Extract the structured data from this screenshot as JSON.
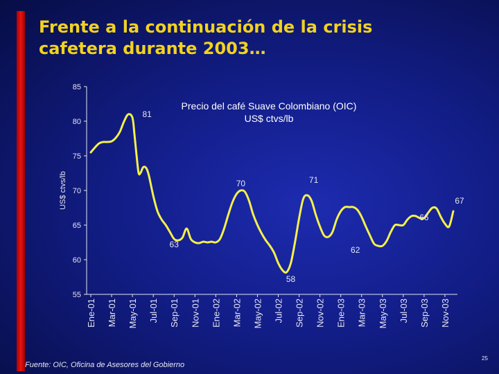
{
  "title": {
    "line1": "Frente a la continuación de la crisis",
    "line2": "cafetera durante 2003…"
  },
  "footer": {
    "source": "Fuente: OIC, Oficina de Asesores del Gobierno",
    "page_number": "25"
  },
  "colors": {
    "title": "#f2d21f",
    "line": "#f5f04a",
    "accent": "#d40d0d"
  },
  "chart_data": {
    "type": "line",
    "title": "Precio del café Suave Colombiano (OIC)",
    "subtitle": "US$ ctvs/lb",
    "ylabel": "US$ ctvs/lb",
    "xlabel": "",
    "ylim": [
      55,
      85
    ],
    "yticks": [
      55,
      60,
      65,
      70,
      75,
      80,
      85
    ],
    "xticks": [
      {
        "label": "Ene-01",
        "pos": 0
      },
      {
        "label": "Mar-01",
        "pos": 1
      },
      {
        "label": "May-01",
        "pos": 2
      },
      {
        "label": "Jul-01",
        "pos": 3
      },
      {
        "label": "Sep-01",
        "pos": 4
      },
      {
        "label": "Nov-01",
        "pos": 5
      },
      {
        "label": "Ene-02",
        "pos": 6
      },
      {
        "label": "Mar-02",
        "pos": 7
      },
      {
        "label": "May-02",
        "pos": 8
      },
      {
        "label": "Jul-02",
        "pos": 9
      },
      {
        "label": "Sep-02",
        "pos": 10
      },
      {
        "label": "Nov-02",
        "pos": 11
      },
      {
        "label": "Ene-03",
        "pos": 12
      },
      {
        "label": "Mar-03",
        "pos": 13
      },
      {
        "label": "May-03",
        "pos": 14
      },
      {
        "label": "Jul-03",
        "pos": 15
      },
      {
        "label": "Sep-03",
        "pos": 16
      },
      {
        "label": "Nov-03",
        "pos": 17
      }
    ],
    "series": [
      {
        "name": "Precio del café Suave Colombiano (OIC)",
        "x": [
          0,
          0.2,
          0.4,
          0.6,
          0.8,
          1.0,
          1.2,
          1.4,
          1.6,
          1.8,
          2.0,
          2.1,
          2.2,
          2.3,
          2.4,
          2.5,
          2.6,
          2.7,
          2.8,
          3.0,
          3.2,
          3.4,
          3.6,
          3.8,
          4.0,
          4.2,
          4.4,
          4.6,
          4.8,
          5.0,
          5.2,
          5.4,
          5.6,
          5.8,
          6.0,
          6.2,
          6.4,
          6.6,
          6.8,
          7.0,
          7.2,
          7.4,
          7.6,
          7.8,
          8.0,
          8.2,
          8.4,
          8.6,
          8.8,
          9.0,
          9.2,
          9.4,
          9.6,
          9.8,
          10.0,
          10.2,
          10.4,
          10.6,
          10.8,
          11.0,
          11.2,
          11.4,
          11.6,
          11.8,
          12.0,
          12.2,
          12.4,
          12.6,
          12.8,
          13.0,
          13.2,
          13.4,
          13.6,
          13.8,
          14.0,
          14.2,
          14.4,
          14.6,
          14.8,
          15.0,
          15.2,
          15.4,
          15.6,
          15.8,
          16.0,
          16.2,
          16.4,
          16.6,
          16.8,
          17.0,
          17.2,
          17.4
        ],
        "values": [
          75.5,
          76.2,
          76.8,
          77.0,
          77.0,
          77.1,
          77.6,
          78.5,
          80.0,
          81.0,
          80.5,
          78.0,
          75.0,
          72.5,
          72.6,
          73.3,
          73.4,
          73.0,
          72.0,
          69.2,
          67.0,
          65.8,
          65.0,
          64.0,
          63.0,
          62.8,
          63.2,
          64.5,
          63.0,
          62.5,
          62.4,
          62.6,
          62.5,
          62.6,
          62.5,
          63.0,
          64.5,
          66.5,
          68.3,
          69.5,
          70.0,
          69.8,
          68.5,
          66.5,
          65.0,
          63.8,
          62.8,
          62.0,
          61.0,
          59.5,
          58.5,
          58.2,
          59.5,
          62.5,
          66.0,
          68.8,
          69.3,
          68.5,
          66.5,
          64.8,
          63.5,
          63.3,
          64.0,
          65.8,
          67.0,
          67.6,
          67.6,
          67.6,
          67.2,
          66.2,
          64.8,
          63.5,
          62.3,
          62.0,
          62.0,
          62.7,
          64.0,
          65.0,
          65.0,
          65.0,
          65.8,
          66.3,
          66.3,
          66.0,
          66.0,
          66.8,
          67.5,
          67.4,
          66.2,
          65.2,
          64.8,
          67.0
        ]
      }
    ],
    "annotations": [
      {
        "text": "81",
        "x": 2.7,
        "y": 81.0
      },
      {
        "text": "63",
        "x": 4.0,
        "y": 62.2
      },
      {
        "text": "70",
        "x": 7.2,
        "y": 71.0
      },
      {
        "text": "71",
        "x": 10.7,
        "y": 71.5
      },
      {
        "text": "58",
        "x": 9.6,
        "y": 57.2
      },
      {
        "text": "62",
        "x": 12.7,
        "y": 61.4
      },
      {
        "text": "66",
        "x": 16.0,
        "y": 66.1
      },
      {
        "text": "67",
        "x": 17.7,
        "y": 68.5
      }
    ]
  }
}
